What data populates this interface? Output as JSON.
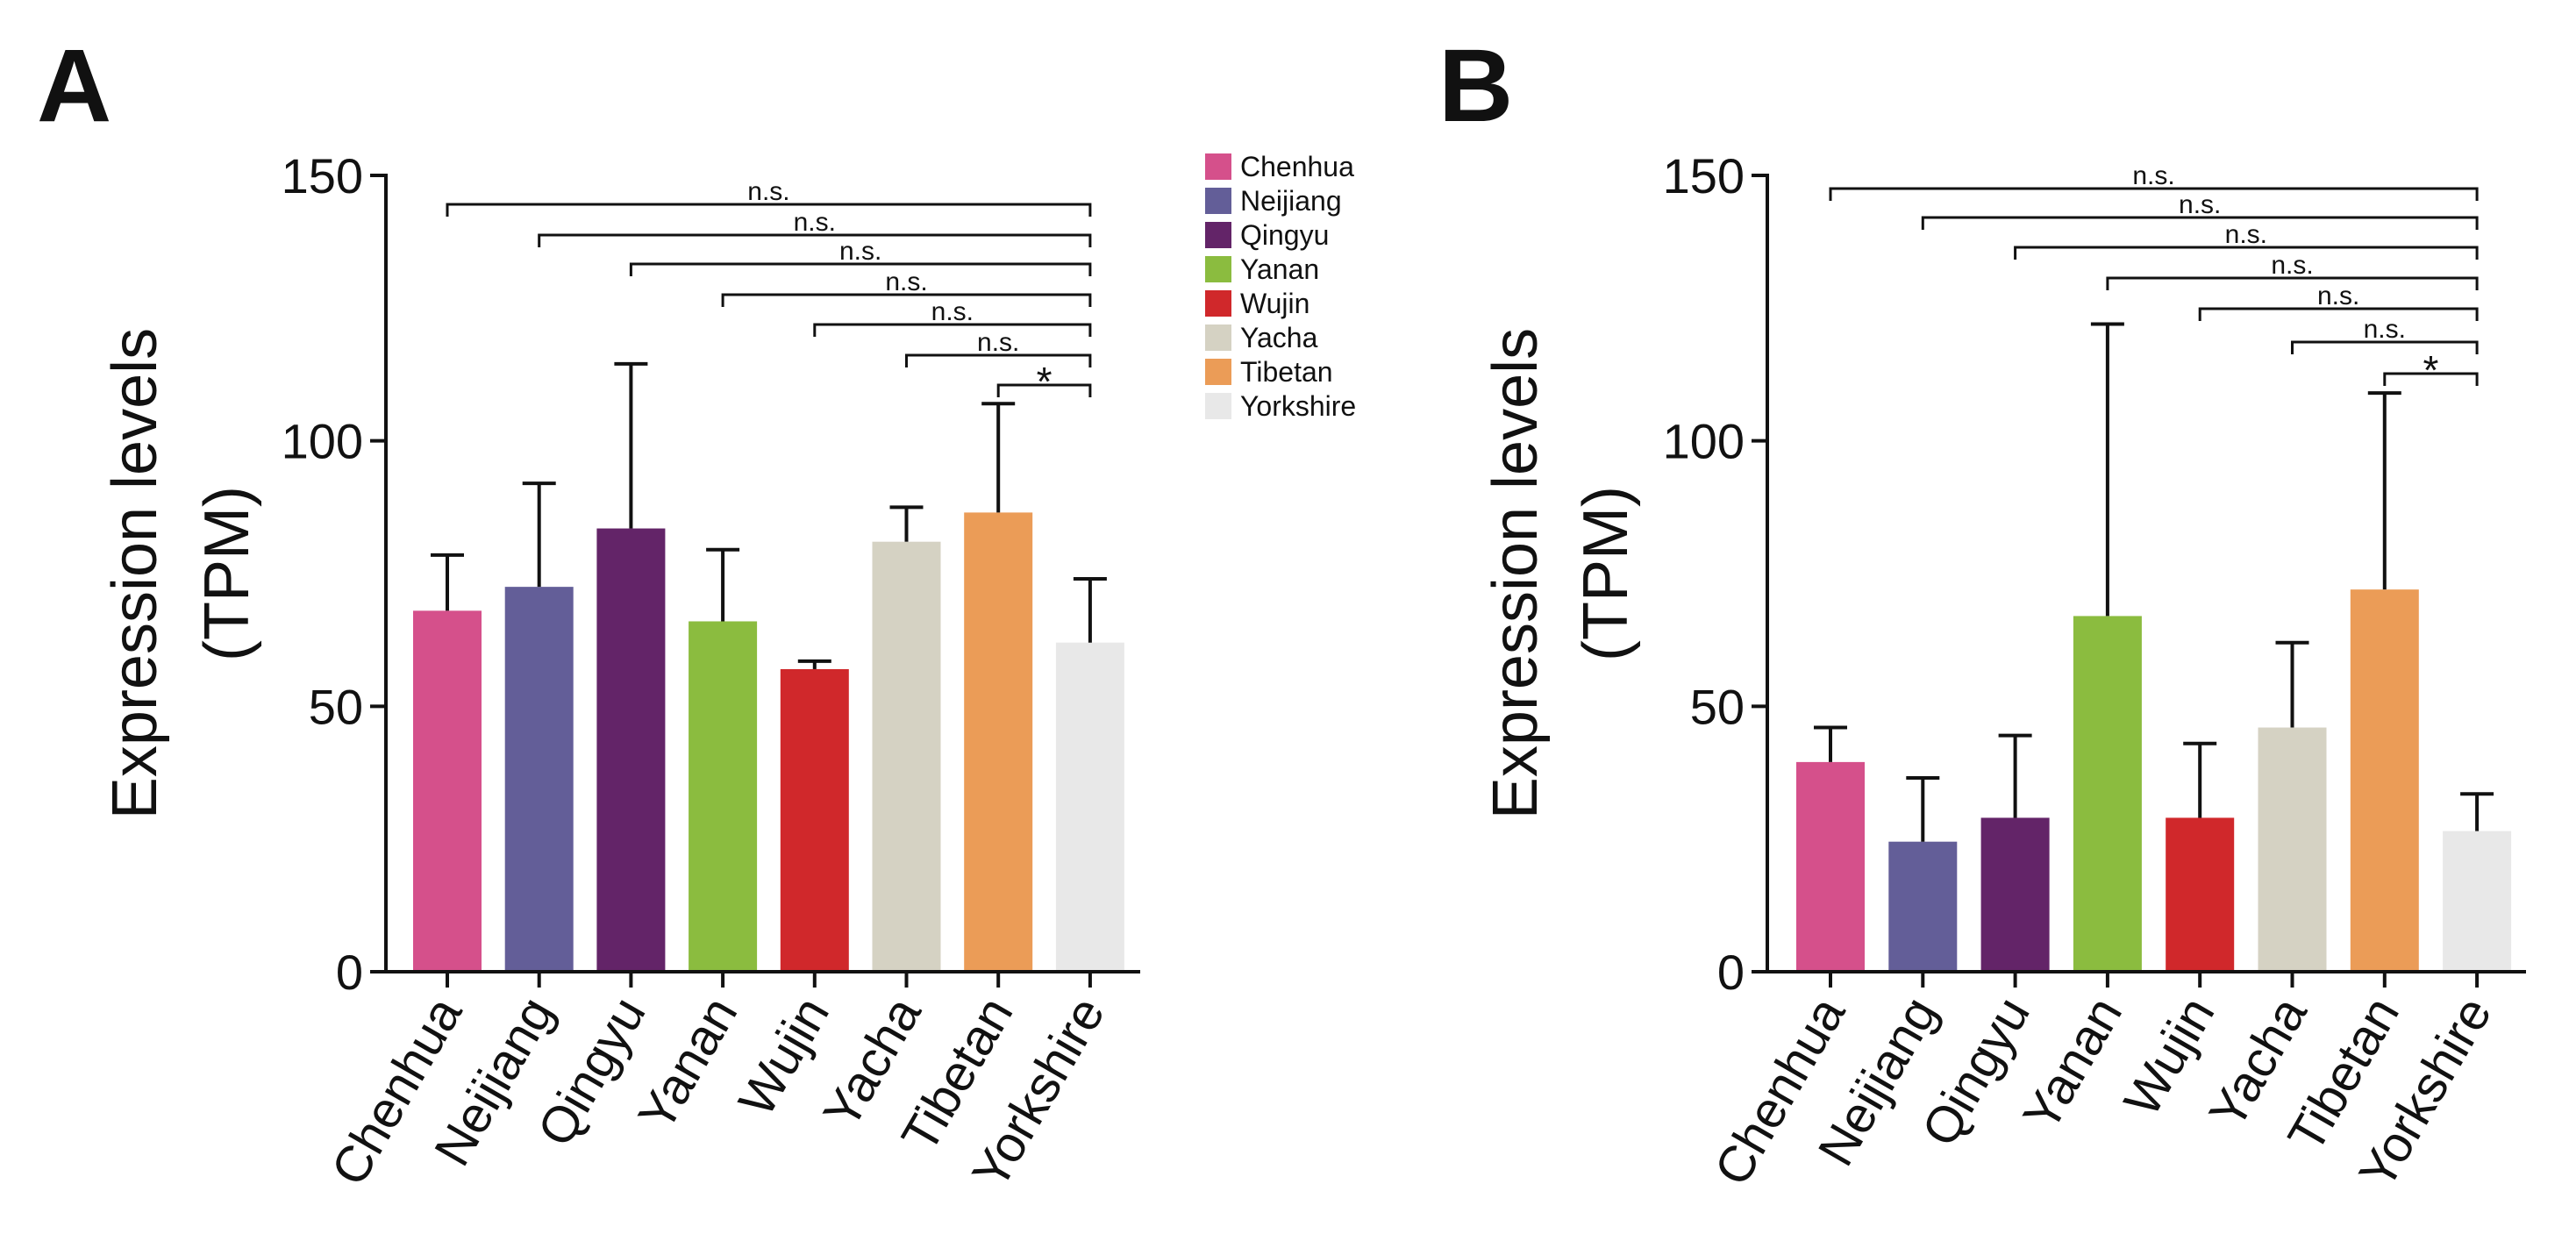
{
  "chart_data": [
    {
      "panel": "A",
      "type": "bar",
      "ylabel_line1": "Expression levels",
      "ylabel_line2": "(TPM)",
      "ylim": [
        0,
        150
      ],
      "yticks": [
        0,
        50,
        100,
        150
      ],
      "categories": [
        "Chenhua",
        "Neijiang",
        "Qingyu",
        "Yanan",
        "Wujin",
        "Yacha",
        "Tibetan",
        "Yorkshire"
      ],
      "values": [
        68,
        72.5,
        83.5,
        66,
        57,
        81,
        86.5,
        62
      ],
      "error_upper": [
        78.5,
        92,
        114.5,
        79.5,
        58.5,
        87.5,
        107,
        74
      ],
      "comparisons": [
        {
          "from": "Chenhua",
          "to": "Yorkshire",
          "label": "n.s."
        },
        {
          "from": "Neijiang",
          "to": "Yorkshire",
          "label": "n.s."
        },
        {
          "from": "Qingyu",
          "to": "Yorkshire",
          "label": "n.s."
        },
        {
          "from": "Yanan",
          "to": "Yorkshire",
          "label": "n.s."
        },
        {
          "from": "Wujin",
          "to": "Yorkshire",
          "label": "n.s."
        },
        {
          "from": "Yacha",
          "to": "Yorkshire",
          "label": "n.s."
        },
        {
          "from": "Tibetan",
          "to": "Yorkshire",
          "label": "*"
        }
      ]
    },
    {
      "panel": "B",
      "type": "bar",
      "ylabel_line1": "Expression levels",
      "ylabel_line2": "(TPM)",
      "ylim": [
        0,
        150
      ],
      "yticks": [
        0,
        50,
        100,
        150
      ],
      "categories": [
        "Chenhua",
        "Neijiang",
        "Qingyu",
        "Yanan",
        "Wujin",
        "Yacha",
        "Tibetan",
        "Yorkshire"
      ],
      "values": [
        39.5,
        24.5,
        29,
        67,
        29,
        46,
        72,
        26.5
      ],
      "error_upper": [
        46,
        36.5,
        44.5,
        122,
        43,
        62,
        109,
        33.5
      ],
      "comparisons": [
        {
          "from": "Chenhua",
          "to": "Yorkshire",
          "label": "n.s."
        },
        {
          "from": "Neijiang",
          "to": "Yorkshire",
          "label": "n.s."
        },
        {
          "from": "Qingyu",
          "to": "Yorkshire",
          "label": "n.s."
        },
        {
          "from": "Yanan",
          "to": "Yorkshire",
          "label": "n.s."
        },
        {
          "from": "Wujin",
          "to": "Yorkshire",
          "label": "n.s."
        },
        {
          "from": "Yacha",
          "to": "Yorkshire",
          "label": "n.s."
        },
        {
          "from": "Tibetan",
          "to": "Yorkshire",
          "label": "*"
        }
      ]
    }
  ],
  "legend": {
    "placement": "right of panel A",
    "items": [
      {
        "label": "Chenhua",
        "color": "#d5508b"
      },
      {
        "label": "Neijiang",
        "color": "#635e98"
      },
      {
        "label": "Qingyu",
        "color": "#632468"
      },
      {
        "label": "Yanan",
        "color": "#8bbc3f"
      },
      {
        "label": "Wujin",
        "color": "#d0282b"
      },
      {
        "label": "Yacha",
        "color": "#d5d2c3"
      },
      {
        "label": "Tibetan",
        "color": "#eb9c57"
      },
      {
        "label": "Yorkshire",
        "color": "#e8e8e8"
      }
    ]
  },
  "colors": {
    "Chenhua": "#d5508b",
    "Neijiang": "#635e98",
    "Qingyu": "#632468",
    "Yanan": "#8bbc3f",
    "Wujin": "#d0282b",
    "Yacha": "#d5d2c3",
    "Tibetan": "#eb9c57",
    "Yorkshire": "#e8e8e8"
  }
}
